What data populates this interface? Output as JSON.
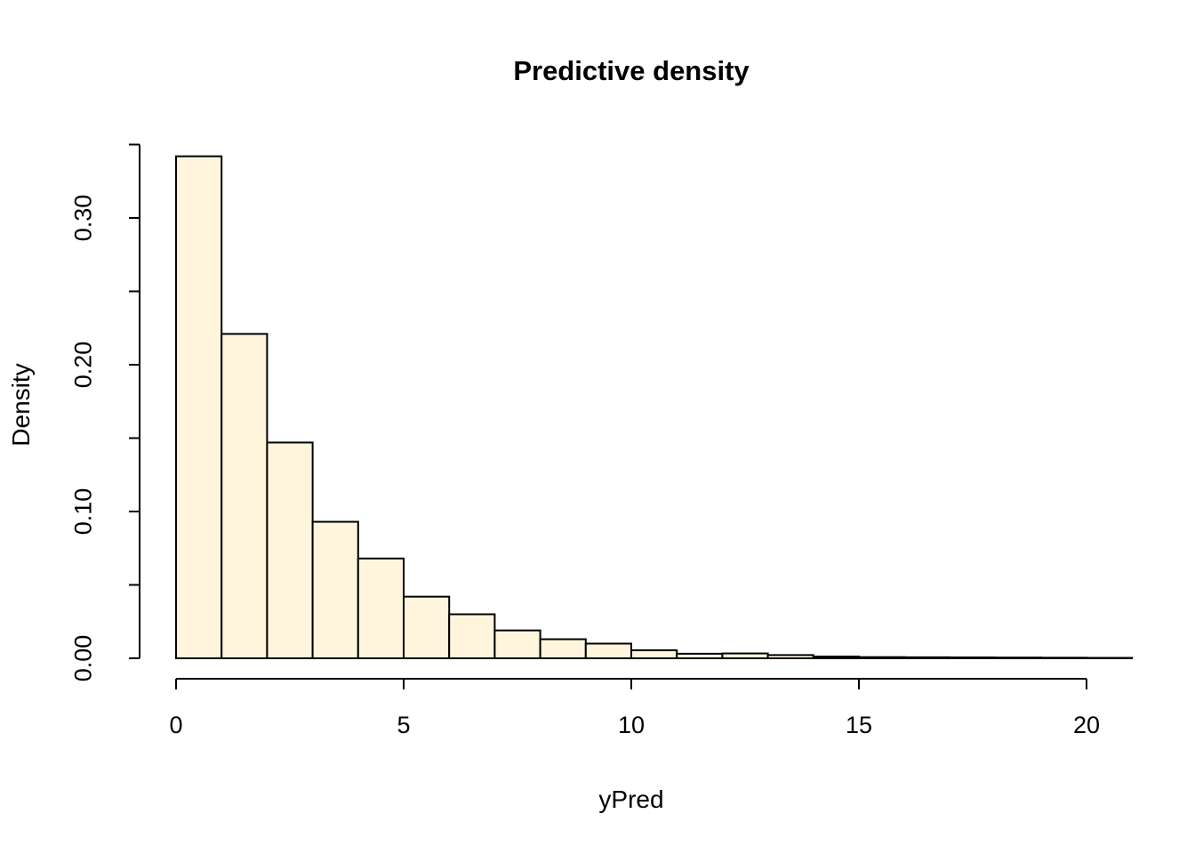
{
  "chart_data": {
    "type": "bar",
    "subtype": "histogram",
    "title": "Predictive density",
    "xlabel": "yPred",
    "ylabel": "Density",
    "bin_edges": [
      0,
      1,
      2,
      3,
      4,
      5,
      6,
      7,
      8,
      9,
      10,
      11,
      12,
      13,
      14,
      15,
      16,
      17,
      18,
      19,
      20,
      21
    ],
    "values": [
      0.342,
      0.221,
      0.147,
      0.093,
      0.068,
      0.042,
      0.03,
      0.019,
      0.013,
      0.01,
      0.0055,
      0.0031,
      0.0033,
      0.0022,
      0.0012,
      0.0008,
      0.0007,
      0.0006,
      0.0005,
      0.0004,
      0.0003
    ],
    "xlim": [
      0,
      21
    ],
    "ylim": [
      0,
      0.35
    ],
    "x_ticks": [
      0,
      5,
      10,
      15,
      20
    ],
    "x_tick_labels": [
      "0",
      "5",
      "10",
      "15",
      "20"
    ],
    "y_major_ticks": [
      0.0,
      0.1,
      0.2,
      0.3
    ],
    "y_tick_labels": [
      "0.00",
      "0.10",
      "0.20",
      "0.30"
    ],
    "y_minor_tick_step": 0.05,
    "grid": false,
    "legend": null,
    "colors": {
      "bar_fill": "#FFF5DC",
      "bar_stroke": "#000000",
      "axis": "#000000",
      "text": "#000000",
      "background": "#FFFFFF"
    }
  }
}
